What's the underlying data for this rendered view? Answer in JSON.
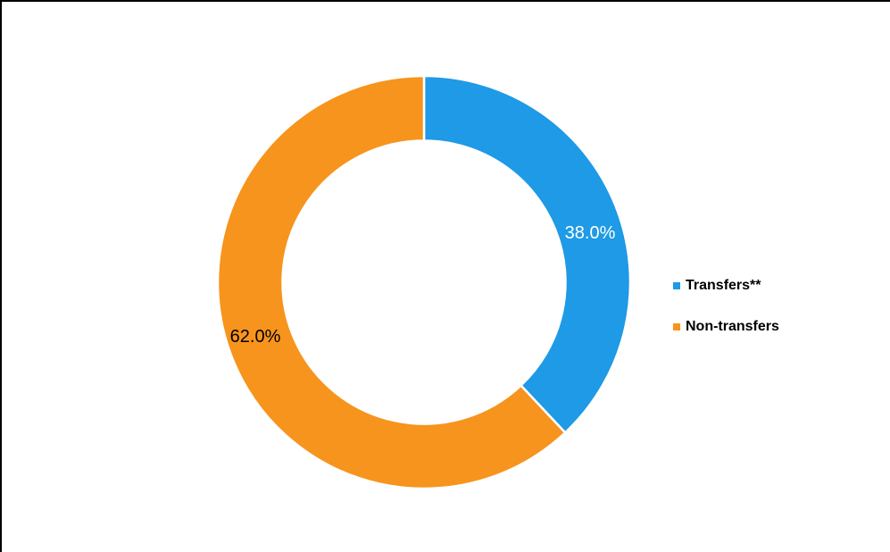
{
  "chart_data": {
    "type": "pie",
    "subtype": "donut",
    "start_angle_deg": 0,
    "direction": "clockwise",
    "donut_hole_ratio": 0.69,
    "title": "",
    "legend_position": "right",
    "categories": [
      "Transfers**",
      "Non-transfers"
    ],
    "values": [
      38.0,
      62.0
    ],
    "slices": [
      {
        "name": "Transfers**",
        "value": 38.0,
        "label": "38.0%",
        "color": "#1E9AE6",
        "label_color": "#FFFFFF"
      },
      {
        "name": "Non-transfers",
        "value": 62.0,
        "label": "62.0%",
        "color": "#F7941D",
        "label_color": "#000000"
      }
    ]
  },
  "legend": {
    "items": [
      {
        "label": "Transfers**",
        "color": "#1E9AE6"
      },
      {
        "label": "Non-transfers",
        "color": "#F7941D"
      }
    ]
  },
  "frame": {
    "border_color": "#000000"
  }
}
